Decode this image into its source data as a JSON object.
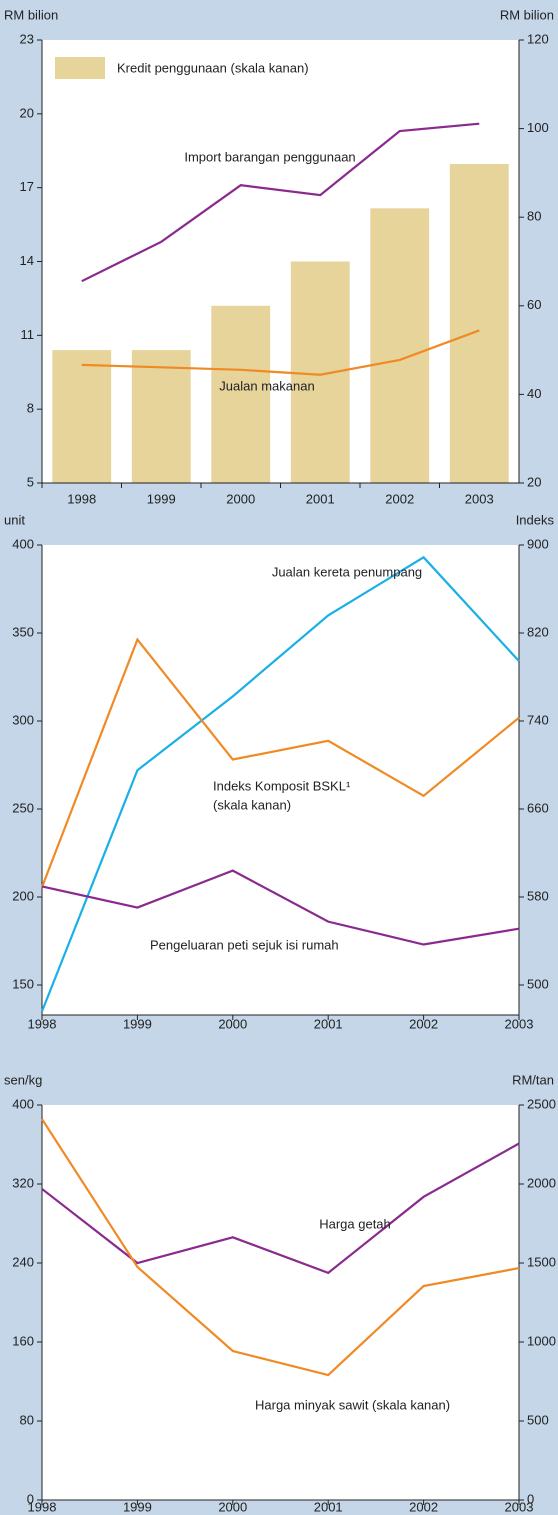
{
  "chart_data": [
    {
      "type": "bar",
      "categories": [
        "1998",
        "1999",
        "2000",
        "2001",
        "2002",
        "2003"
      ],
      "y_label": "RM bilion",
      "y2_label": "RM bilion",
      "ylim": [
        5,
        23
      ],
      "yticks": [
        5,
        8,
        11,
        14,
        17,
        20,
        23
      ],
      "y2lim": [
        20,
        120
      ],
      "y2ticks": [
        20,
        40,
        60,
        80,
        100,
        120
      ],
      "series": [
        {
          "name": "Kredit penggunaan (skala kanan)",
          "type": "bar",
          "axis": "y2",
          "color": "#e6d49a",
          "values": [
            50,
            50,
            60,
            70,
            82,
            92
          ]
        },
        {
          "name": "Import barangan penggunaan",
          "type": "line",
          "color": "#8b2a8e",
          "values": [
            13.2,
            14.8,
            17.1,
            16.7,
            19.3,
            19.6
          ]
        },
        {
          "name": "Jualan makanan",
          "type": "line",
          "color": "#f08a24",
          "values": [
            9.8,
            9.7,
            9.6,
            9.4,
            10.0,
            11.2
          ]
        }
      ]
    },
    {
      "type": "line",
      "x": [
        1998,
        1999,
        2000,
        2001,
        2002,
        2003
      ],
      "xlim": [
        1998,
        2003
      ],
      "xticks": [
        1998,
        1999,
        2000,
        2001,
        2002,
        2003
      ],
      "y_label": "unit",
      "y2_label": "Indeks",
      "ylim": [
        150,
        400
      ],
      "yticks": [
        150,
        200,
        250,
        300,
        350,
        400
      ],
      "y2lim": [
        500,
        900
      ],
      "y2ticks": [
        500,
        580,
        660,
        740,
        820,
        900
      ],
      "annotations": [
        "(skala kanan)"
      ],
      "series": [
        {
          "name": "Jualan kereta penumpang",
          "color": "#1ab0e6",
          "values": [
            135,
            272,
            314,
            360,
            393,
            334
          ]
        },
        {
          "name": "Indeks Komposit BSKL¹",
          "axis": "y2",
          "color": "#f08a24",
          "values": [
            589,
            814,
            705,
            722,
            672,
            743
          ]
        },
        {
          "name": "Pengeluaran peti sejuk isi rumah",
          "color": "#8b2a8e",
          "values": [
            206,
            194,
            215,
            186,
            173,
            182
          ]
        }
      ]
    },
    {
      "type": "line",
      "x": [
        1998,
        1999,
        2000,
        2001,
        2002,
        2003
      ],
      "xlim": [
        1998,
        2003
      ],
      "xticks": [
        1998,
        1999,
        2000,
        2001,
        2002,
        2003
      ],
      "y_label": "sen/kg",
      "y2_label": "RM/tan",
      "ylim": [
        0,
        400
      ],
      "yticks": [
        0,
        80,
        160,
        240,
        320,
        400
      ],
      "y2lim": [
        0,
        2500
      ],
      "y2ticks": [
        0,
        500,
        1000,
        1500,
        2000,
        2500
      ],
      "series": [
        {
          "name": "Harga getah",
          "color": "#8b2a8e",
          "values": [
            315,
            240,
            266,
            230,
            307,
            361
          ]
        },
        {
          "name": "Harga minyak sawit (skala kanan)",
          "axis": "y2",
          "color": "#f08a24",
          "values": [
            2411,
            1475,
            943,
            791,
            1354,
            1468
          ]
        }
      ]
    }
  ]
}
